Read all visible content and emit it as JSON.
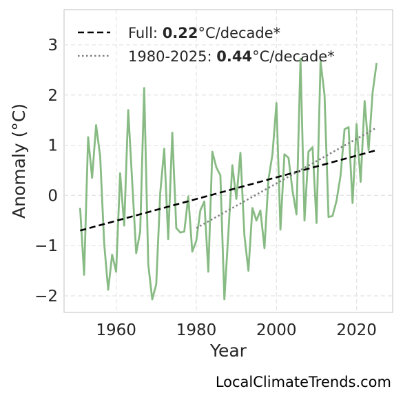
{
  "chart_data": {
    "type": "line",
    "xlabel": "Year",
    "ylabel": "Anomaly (°C)",
    "xlim": [
      1947,
      2029
    ],
    "ylim": [
      -2.33,
      3.7
    ],
    "x_ticks": [
      1960,
      1980,
      2000,
      2020
    ],
    "y_ticks": [
      -2,
      -1,
      0,
      1,
      2,
      3
    ],
    "y_tick_labels": [
      "−2",
      "−1",
      "0",
      "1",
      "2",
      "3"
    ],
    "grid": true,
    "legend_position": "top-left",
    "series": [
      {
        "kind": "anomaly",
        "color": "#88bb84",
        "x": [
          1951,
          1952,
          1953,
          1954,
          1955,
          1956,
          1957,
          1958,
          1959,
          1960,
          1961,
          1962,
          1963,
          1964,
          1965,
          1966,
          1967,
          1968,
          1969,
          1970,
          1971,
          1972,
          1973,
          1974,
          1975,
          1976,
          1977,
          1978,
          1979,
          1980,
          1981,
          1982,
          1983,
          1984,
          1985,
          1986,
          1987,
          1988,
          1989,
          1990,
          1991,
          1992,
          1993,
          1994,
          1995,
          1996,
          1997,
          1998,
          1999,
          2000,
          2001,
          2002,
          2003,
          2004,
          2005,
          2006,
          2007,
          2008,
          2009,
          2010,
          2011,
          2012,
          2013,
          2014,
          2015,
          2016,
          2017,
          2018,
          2019,
          2020,
          2021,
          2022,
          2023,
          2024,
          2025
        ],
        "y": [
          -0.25,
          -1.58,
          1.16,
          0.35,
          1.4,
          0.78,
          -0.95,
          -1.88,
          -1.18,
          -1.52,
          0.44,
          -0.6,
          1.7,
          0.27,
          -1.15,
          -0.72,
          2.14,
          -1.37,
          -2.07,
          -1.77,
          0.05,
          0.93,
          -0.87,
          1.25,
          -0.65,
          -0.74,
          -0.72,
          -0.02,
          -1.12,
          -0.9,
          -0.3,
          -0.12,
          -1.52,
          0.87,
          0.56,
          0.4,
          -2.07,
          -0.75,
          0.6,
          -0.07,
          0.85,
          -0.8,
          -1.5,
          -0.25,
          -0.5,
          -0.3,
          -1.05,
          0.32,
          0.82,
          1.84,
          -0.68,
          0.82,
          0.75,
          0.1,
          -0.38,
          2.72,
          -0.5,
          0.87,
          0.96,
          -0.55,
          2.67,
          2.0,
          -0.43,
          -0.41,
          -0.1,
          0.4,
          1.32,
          1.36,
          -0.15,
          1.42,
          0.27,
          1.88,
          0.9,
          2.05,
          2.64
        ]
      },
      {
        "name": "Full",
        "kind": "trend-full",
        "color": "#000000",
        "rate": "0.22",
        "unit": "°C/decade*",
        "x": [
          1951,
          2025
        ],
        "y": [
          -0.7,
          0.9
        ]
      },
      {
        "name": "1980-2025",
        "kind": "trend-recent",
        "color": "#808080",
        "rate": "0.44",
        "unit": "°C/decade*",
        "x": [
          1980,
          2025
        ],
        "y": [
          -0.65,
          1.35
        ]
      }
    ]
  },
  "credit": "LocalClimateTrends.com"
}
